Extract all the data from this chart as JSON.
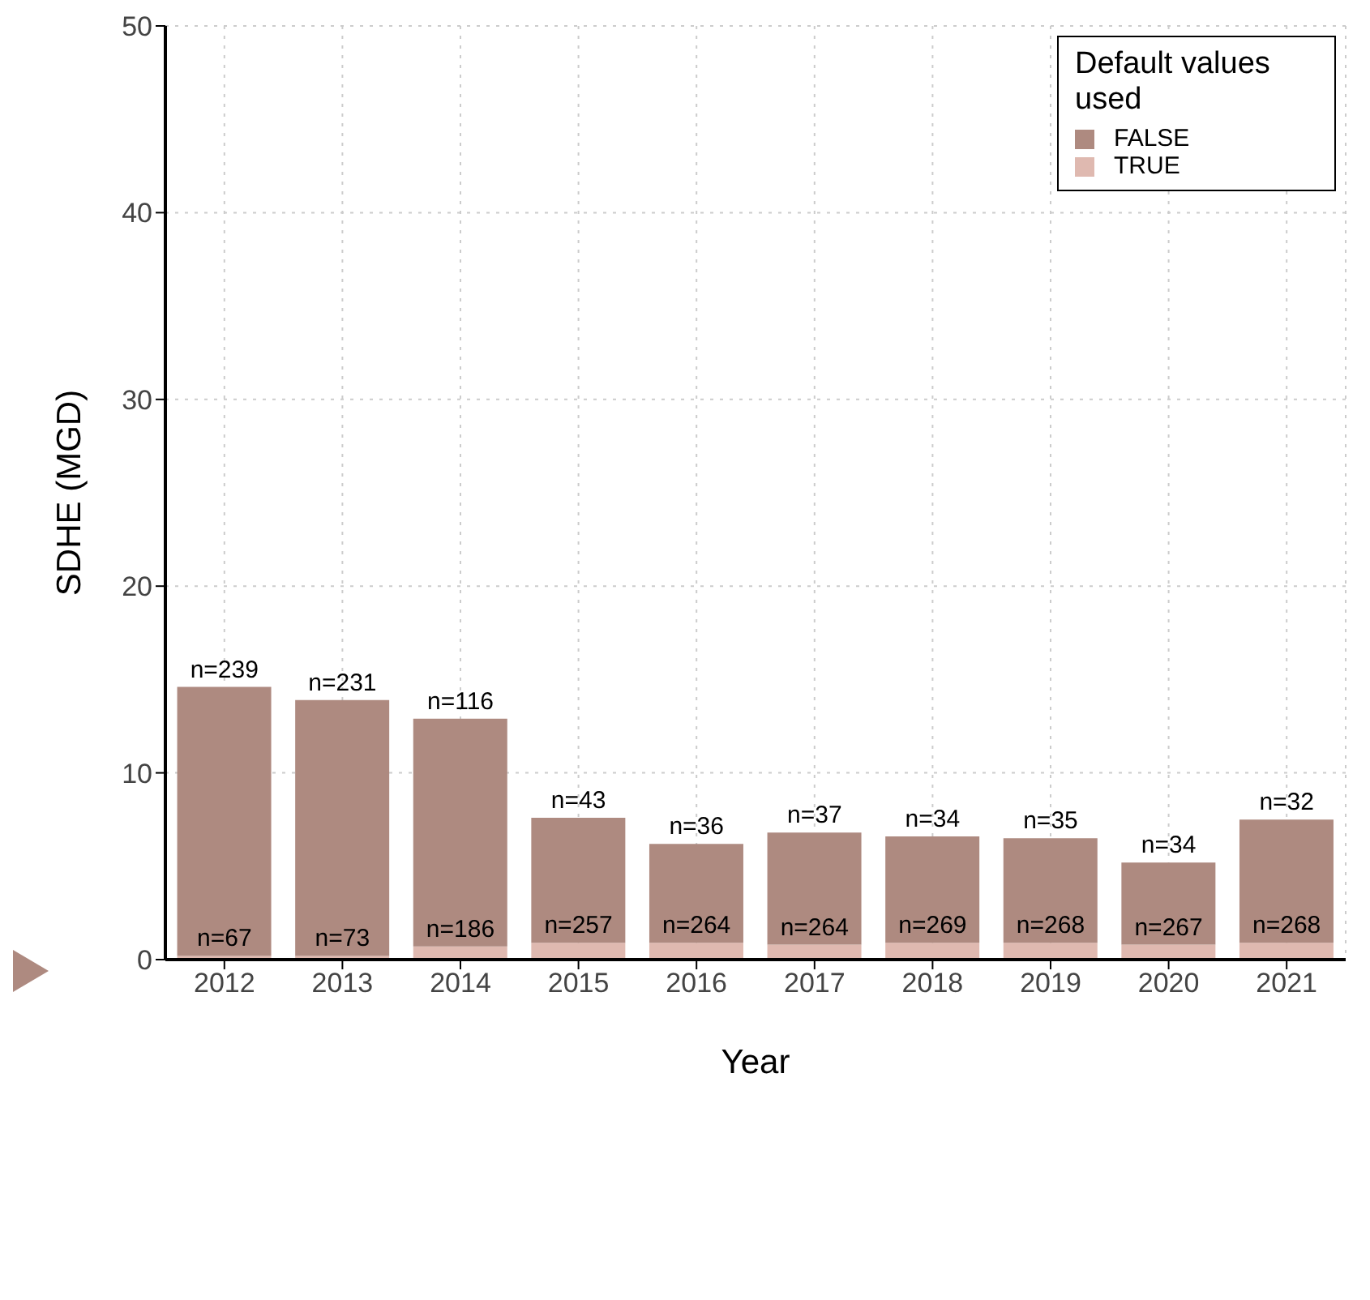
{
  "chart_data": {
    "type": "bar",
    "xlabel": "Year",
    "ylabel": "SDHE (MGD)",
    "legend_title": "Default values used",
    "categories": [
      "2012",
      "2013",
      "2014",
      "2015",
      "2016",
      "2017",
      "2018",
      "2019",
      "2020",
      "2021"
    ],
    "stacked": true,
    "series": [
      {
        "name": "TRUE",
        "color": "#dfb9b0",
        "values": [
          0.2,
          0.2,
          0.7,
          0.9,
          0.9,
          0.8,
          0.9,
          0.9,
          0.8,
          0.9
        ]
      },
      {
        "name": "FALSE",
        "color": "#ae8a80",
        "values": [
          14.4,
          13.7,
          12.2,
          6.7,
          5.3,
          6.0,
          5.7,
          5.6,
          4.4,
          6.6
        ]
      }
    ],
    "annotations": [
      {
        "text": "n=67",
        "x": "2012",
        "y": 0.2
      },
      {
        "text": "n=73",
        "x": "2013",
        "y": 0.2
      },
      {
        "text": "n=186",
        "x": "2014",
        "y": 0.7
      },
      {
        "text": "n=257",
        "x": "2015",
        "y": 0.9
      },
      {
        "text": "n=264",
        "x": "2016",
        "y": 0.9
      },
      {
        "text": "n=264",
        "x": "2017",
        "y": 0.8
      },
      {
        "text": "n=269",
        "x": "2018",
        "y": 0.9
      },
      {
        "text": "n=268",
        "x": "2019",
        "y": 0.9
      },
      {
        "text": "n=267",
        "x": "2020",
        "y": 0.8
      },
      {
        "text": "n=268",
        "x": "2021",
        "y": 0.9
      },
      {
        "text": "n=239",
        "x": "2012",
        "y": 14.6
      },
      {
        "text": "n=231",
        "x": "2013",
        "y": 13.9
      },
      {
        "text": "n=116",
        "x": "2014",
        "y": 12.9
      },
      {
        "text": "n=43",
        "x": "2015",
        "y": 7.6
      },
      {
        "text": "n=36",
        "x": "2016",
        "y": 6.2
      },
      {
        "text": "n=37",
        "x": "2017",
        "y": 6.8
      },
      {
        "text": "n=34",
        "x": "2018",
        "y": 6.6
      },
      {
        "text": "n=35",
        "x": "2019",
        "y": 6.5
      },
      {
        "text": "n=34",
        "x": "2020",
        "y": 5.2
      },
      {
        "text": "n=32",
        "x": "2021",
        "y": 7.5
      }
    ],
    "ylim": [
      0,
      50
    ],
    "yticks": [
      0,
      10,
      20,
      30,
      40,
      50
    ],
    "grid": true,
    "legend": "top right"
  }
}
